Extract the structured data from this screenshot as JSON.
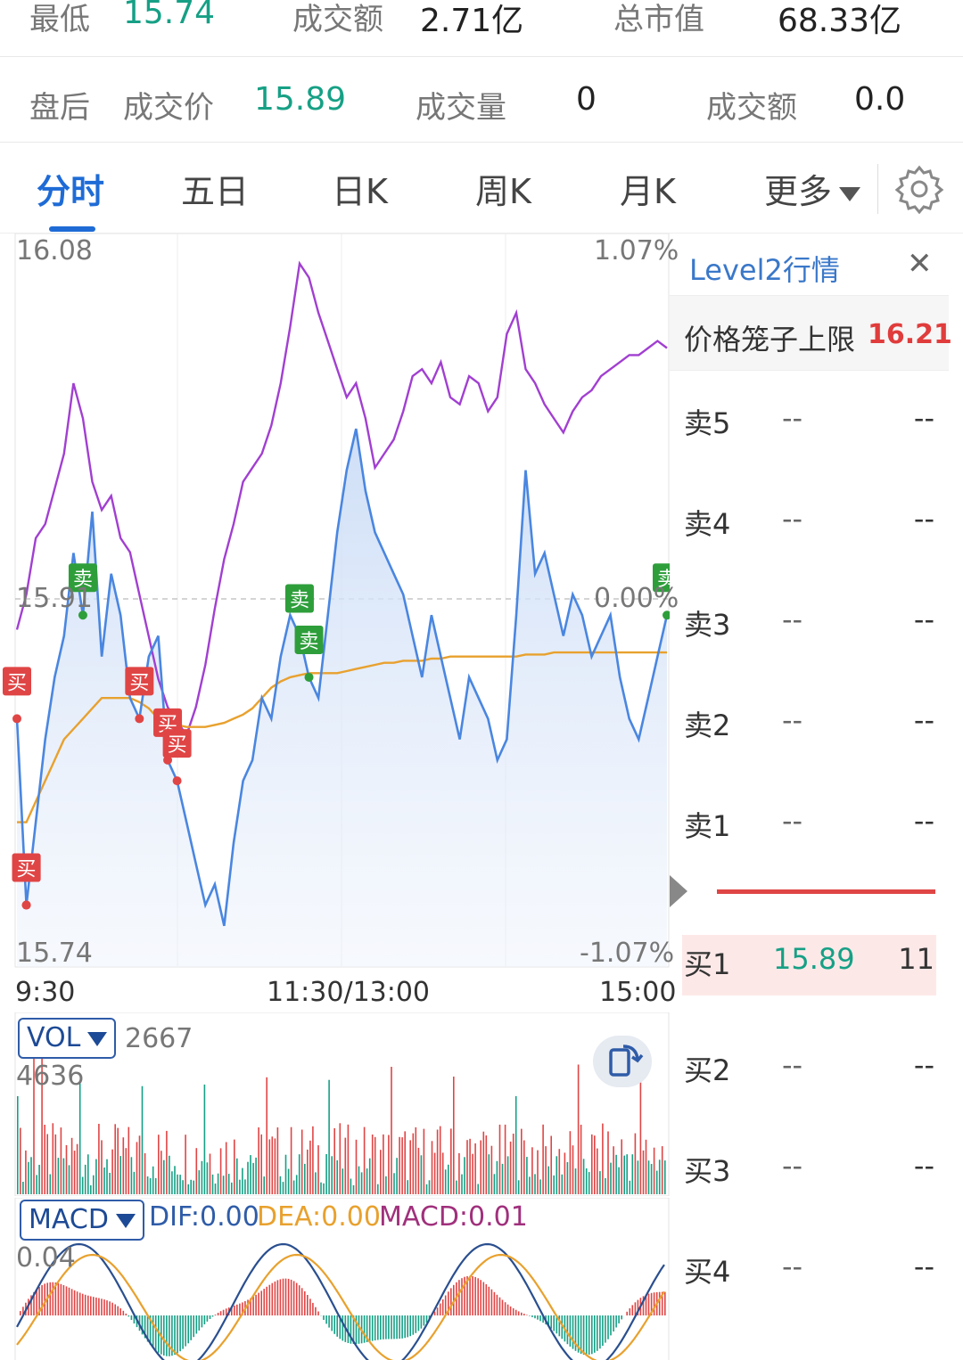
{
  "stats": {
    "low_label": "最低",
    "low_value": "15.74",
    "turnover_label": "成交额",
    "turnover_value": "2.71亿",
    "mcap_label": "总市值",
    "mcap_value": "68.33亿"
  },
  "after_hours": {
    "label": "盘后",
    "price_label": "成交价",
    "price_value": "15.89",
    "volume_label": "成交量",
    "volume_value": "0",
    "amount_label": "成交额",
    "amount_value": "0.0"
  },
  "tabs": [
    {
      "label": "分时",
      "active": true
    },
    {
      "label": "五日"
    },
    {
      "label": "日K"
    },
    {
      "label": "周K"
    },
    {
      "label": "月K"
    },
    {
      "label": "更多"
    }
  ],
  "icons": {
    "settings": "gear-icon",
    "more_caret": "caret-down-icon",
    "rotate": "rotate-screen-icon",
    "close": "close-icon"
  },
  "colors": {
    "price_line": "#4a86e0",
    "avg_line": "#e8a12e",
    "index_line": "#a13fd1",
    "up": "#e04545",
    "down": "#16a085",
    "accent": "#1e6bd6"
  },
  "axis": {
    "price_high": "16.08",
    "price_low": "15.74",
    "price_mid": "15.91",
    "pct_high": "1.07%",
    "pct_low": "-1.07%",
    "pct_mid": "0.00%",
    "time_start": "9:30",
    "time_mid": "11:30/13:00",
    "time_end": "15:00"
  },
  "chart_data": {
    "type": "line",
    "x_range": [
      "9:30",
      "15:00"
    ],
    "ylim": [
      15.74,
      16.08
    ],
    "series": [],
    "price": [
      15.85,
      15.76,
      15.8,
      15.84,
      15.87,
      15.89,
      15.93,
      15.9,
      15.95,
      15.88,
      15.92,
      15.9,
      15.86,
      15.85,
      15.88,
      15.89,
      15.83,
      15.82,
      15.8,
      15.78,
      15.76,
      15.77,
      15.75,
      15.79,
      15.82,
      15.83,
      15.86,
      15.85,
      15.88,
      15.9,
      15.89,
      15.87,
      15.86,
      15.9,
      15.94,
      15.97,
      15.99,
      15.96,
      15.94,
      15.93,
      15.92,
      15.91,
      15.89,
      15.87,
      15.9,
      15.88,
      15.86,
      15.84,
      15.87,
      15.86,
      15.85,
      15.83,
      15.84,
      15.9,
      15.97,
      15.92,
      15.93,
      15.91,
      15.89,
      15.91,
      15.9,
      15.88,
      15.89,
      15.9,
      15.87,
      15.85,
      15.84,
      15.86,
      15.88,
      15.9
    ],
    "avg_price": [
      15.8,
      15.8,
      15.81,
      15.82,
      15.83,
      15.84,
      15.845,
      15.85,
      15.855,
      15.86,
      15.86,
      15.86,
      15.86,
      15.858,
      15.855,
      15.85,
      15.848,
      15.847,
      15.846,
      15.846,
      15.846,
      15.847,
      15.848,
      15.85,
      15.852,
      15.855,
      15.86,
      15.865,
      15.868,
      15.87,
      15.871,
      15.872,
      15.872,
      15.872,
      15.872,
      15.873,
      15.874,
      15.875,
      15.876,
      15.877,
      15.877,
      15.878,
      15.878,
      15.878,
      15.879,
      15.879,
      15.88,
      15.88,
      15.88,
      15.88,
      15.88,
      15.88,
      15.88,
      15.88,
      15.881,
      15.881,
      15.881,
      15.882,
      15.882,
      15.882,
      15.882,
      15.882,
      15.882,
      15.882,
      15.882,
      15.882,
      15.882,
      15.882,
      15.882,
      15.882
    ],
    "trade_markers": [
      {
        "label": "卖",
        "side": "sell"
      },
      {
        "label": "买",
        "side": "buy"
      },
      {
        "label": "买",
        "side": "buy"
      },
      {
        "label": "买",
        "side": "buy"
      },
      {
        "label": "买",
        "side": "buy"
      },
      {
        "label": "买",
        "side": "buy"
      },
      {
        "label": "买",
        "side": "buy"
      },
      {
        "label": "卖",
        "side": "sell"
      },
      {
        "label": "卖",
        "side": "sell"
      },
      {
        "label": "卖",
        "side": "sell"
      }
    ]
  },
  "volume": {
    "selector": "VOL",
    "current": "2667",
    "max_label": "4636"
  },
  "macd": {
    "selector": "MACD",
    "dif": "DIF:0.00",
    "dea": "DEA:0.00",
    "macd": "MACD:0.01",
    "top_label": "0.04"
  },
  "level2": {
    "title": "Level2行情",
    "cage_label": "价格笼子上限",
    "cage_value": "16.21",
    "asks": [
      {
        "label": "卖5",
        "price": "--",
        "vol": "--"
      },
      {
        "label": "卖4",
        "price": "--",
        "vol": "--"
      },
      {
        "label": "卖3",
        "price": "--",
        "vol": "--"
      },
      {
        "label": "卖2",
        "price": "--",
        "vol": "--"
      },
      {
        "label": "卖1",
        "price": "--",
        "vol": "--"
      }
    ],
    "bids": [
      {
        "label": "买1",
        "price": "15.89",
        "vol": "11"
      },
      {
        "label": "买2",
        "price": "--",
        "vol": "--"
      },
      {
        "label": "买3",
        "price": "--",
        "vol": "--"
      },
      {
        "label": "买4",
        "price": "--",
        "vol": "--"
      }
    ]
  }
}
